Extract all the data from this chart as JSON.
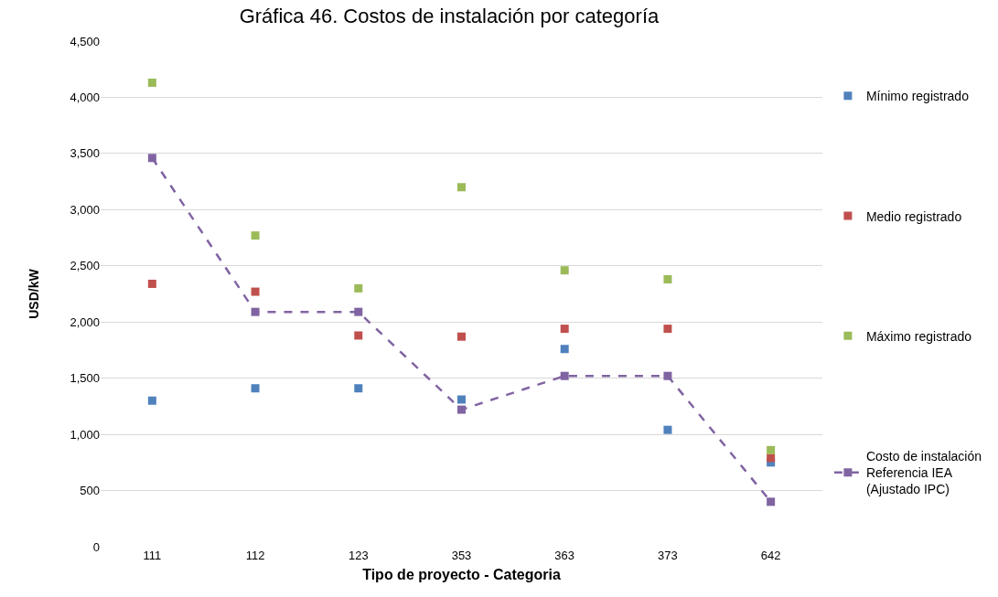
{
  "chart_data": {
    "type": "scatter",
    "title": "Gráfica 46. Costos de instalación por categoría",
    "xlabel": "Tipo de proyecto - Categoria",
    "ylabel": "USD/kW",
    "categories": [
      "111",
      "112",
      "123",
      "353",
      "363",
      "373",
      "642"
    ],
    "series": [
      {
        "name": "Mínimo registrado",
        "color": "#4f81bd",
        "values": [
          1300,
          1410,
          1410,
          1310,
          1760,
          1040,
          750
        ]
      },
      {
        "name": "Medio registrado",
        "color": "#c0504d",
        "values": [
          2340,
          2270,
          1880,
          1870,
          1940,
          1940,
          790
        ]
      },
      {
        "name": "Máximo registrado",
        "color": "#9bbb59",
        "values": [
          4130,
          2770,
          2300,
          3200,
          2460,
          2380,
          860
        ]
      },
      {
        "name": "Costo de instalación Referencia IEA (Ajustado IPC)",
        "type": "line",
        "line_style": "dashed",
        "color": "#8064a2",
        "values": [
          3460,
          2090,
          2090,
          1220,
          1520,
          1520,
          400
        ]
      }
    ],
    "ylim": [
      0,
      4500
    ],
    "yticks": [
      0,
      {
        "value": 500,
        "label": "500"
      },
      {
        "value": 1000,
        "label": "1,000"
      },
      {
        "value": 1500,
        "label": "1,500"
      },
      {
        "value": 2000,
        "label": "2,000"
      },
      {
        "value": 2500,
        "label": "2,500"
      },
      {
        "value": 3000,
        "label": "3,000"
      },
      {
        "value": 3500,
        "label": "3,500"
      },
      {
        "value": 4000,
        "label": "4,000"
      },
      {
        "value": 4500,
        "label": "4,500"
      }
    ],
    "grid": "y",
    "legend": "right",
    "marker": "square"
  }
}
